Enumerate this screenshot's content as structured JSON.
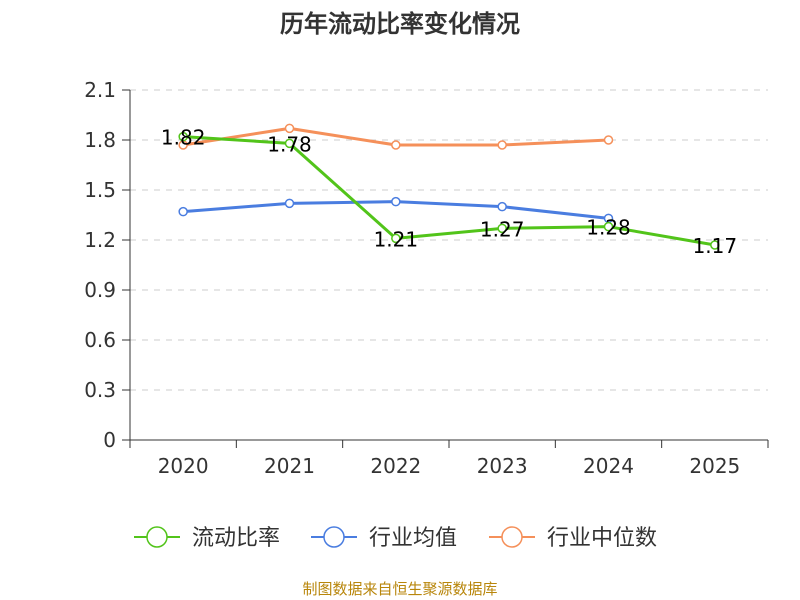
{
  "chart_data": {
    "type": "line",
    "title": "历年流动比率变化情况",
    "categories": [
      "2020",
      "2021",
      "2022",
      "2023",
      "2024",
      "2025"
    ],
    "ylim": [
      0,
      2.1
    ],
    "yticks": [
      0,
      0.3,
      0.6,
      0.9,
      1.2,
      1.5,
      1.8,
      2.1
    ],
    "ytick_labels": [
      "0",
      "0.3",
      "0.6",
      "0.9",
      "1.2",
      "1.5",
      "1.8",
      "2.1"
    ],
    "grid": true,
    "legend_position": "bottom",
    "series": [
      {
        "name": "流动比率",
        "color": "#52c41a",
        "values": [
          1.82,
          1.78,
          1.21,
          1.27,
          1.28,
          1.17
        ],
        "labels": [
          "1.82",
          "1.78",
          "1.21",
          "1.27",
          "1.28",
          "1.17"
        ]
      },
      {
        "name": "行业均值",
        "color": "#4a7de0",
        "values": [
          1.37,
          1.42,
          1.43,
          1.4,
          1.33,
          null
        ]
      },
      {
        "name": "行业中位数",
        "color": "#f5905a",
        "values": [
          1.77,
          1.87,
          1.77,
          1.77,
          1.8,
          null
        ]
      }
    ]
  },
  "footer": {
    "source": "制图数据来自恒生聚源数据库"
  }
}
